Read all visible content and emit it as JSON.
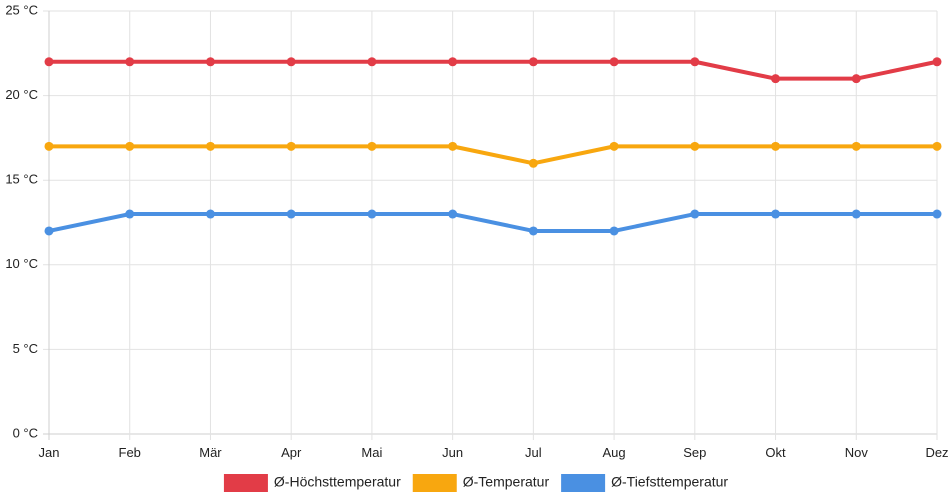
{
  "chart_data": {
    "type": "line",
    "categories": [
      "Jan",
      "Feb",
      "Mär",
      "Apr",
      "Mai",
      "Jun",
      "Jul",
      "Aug",
      "Sep",
      "Okt",
      "Nov",
      "Dez"
    ],
    "series": [
      {
        "name": "Ø-Höchsttemperatur",
        "color": "#e23c47",
        "values": [
          22,
          22,
          22,
          22,
          22,
          22,
          22,
          22,
          22,
          21,
          21,
          22
        ]
      },
      {
        "name": "Ø-Temperatur",
        "color": "#f8a70f",
        "values": [
          17,
          17,
          17,
          17,
          17,
          17,
          16,
          17,
          17,
          17,
          17,
          17
        ]
      },
      {
        "name": "Ø-Tiefsttemperatur",
        "color": "#4a90e2",
        "values": [
          12,
          13,
          13,
          13,
          13,
          13,
          12,
          12,
          13,
          13,
          13,
          13
        ]
      }
    ],
    "y_ticks": [
      "0 °C",
      "5 °C",
      "10 °C",
      "15 °C",
      "20 °C",
      "25 °C"
    ],
    "ylim": [
      0,
      25
    ],
    "y_step": 5,
    "grid": true,
    "legend_position": "bottom-center"
  }
}
